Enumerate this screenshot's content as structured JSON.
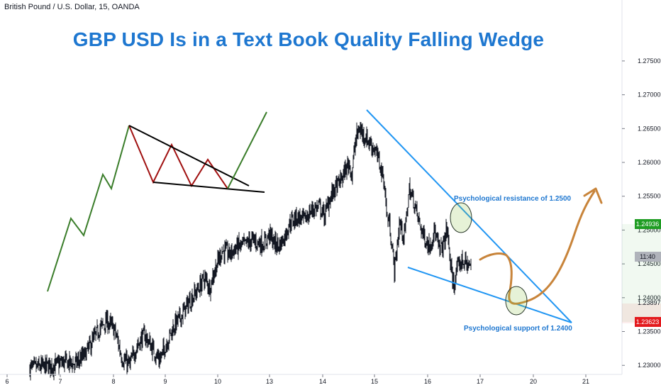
{
  "header": {
    "symbol_text": "British Pound / U.S. Dollar, 15, OANDA"
  },
  "title": "GBP USD Is in a Text Book Quality Falling Wedge",
  "colors": {
    "up_candle": "#131722",
    "wedge_line": "#2196f3",
    "annotation_text": "#1e77d0",
    "projection": "#c8843a",
    "illustration_impulse": "#3a7d2a",
    "illustration_zigzag": "#a01010",
    "illustration_wedge": "#000000",
    "price_green": "#1f9d23",
    "price_red": "#e3191d",
    "price_grey": "#b0b3bb"
  },
  "annotations": {
    "resistance": "Psychological resistance of 1.2500",
    "support": "Psychological support of 1.2400"
  },
  "price_labels": {
    "upper": "1.24936",
    "time": "11:40",
    "mid": "1.23897",
    "lower": "1.23623"
  },
  "chart_data": {
    "type": "line",
    "title": "GBP USD Is in a Text Book Quality Falling Wedge",
    "xlabel": "",
    "ylabel": "",
    "x_ticks": [
      "6",
      "7",
      "8",
      "9",
      "10",
      "13",
      "14",
      "15",
      "16",
      "17",
      "20",
      "21"
    ],
    "y_ticks": [
      "1.23000",
      "1.23500",
      "1.24000",
      "1.24500",
      "1.25000",
      "1.25500",
      "1.26000",
      "1.26500",
      "1.27000",
      "1.27500"
    ],
    "ylim": [
      1.2295,
      1.2795
    ],
    "grid": false,
    "series": [
      {
        "values": [
          [
            0.0,
            1.2296
          ],
          [
            0.5,
            1.23
          ],
          [
            0.7,
            1.2305
          ],
          [
            0.9,
            1.2302
          ],
          [
            1.1,
            1.2315
          ],
          [
            1.25,
            1.2335
          ],
          [
            1.4,
            1.2355
          ],
          [
            1.55,
            1.2365
          ],
          [
            1.7,
            1.2352
          ],
          [
            1.85,
            1.231
          ],
          [
            2.0,
            1.23
          ],
          [
            2.15,
            1.233
          ],
          [
            2.3,
            1.2345
          ],
          [
            2.45,
            1.2325
          ],
          [
            2.6,
            1.2308
          ],
          [
            2.75,
            1.2335
          ],
          [
            2.9,
            1.236
          ],
          [
            3.05,
            1.2375
          ],
          [
            3.2,
            1.2395
          ],
          [
            3.35,
            1.241
          ],
          [
            3.5,
            1.243
          ],
          [
            3.6,
            1.2415
          ],
          [
            3.7,
            1.244
          ],
          [
            3.85,
            1.247
          ],
          [
            4.0,
            1.2465
          ],
          [
            4.15,
            1.2475
          ],
          [
            4.3,
            1.2478
          ],
          [
            4.45,
            1.2485
          ],
          [
            4.55,
            1.2482
          ],
          [
            4.7,
            1.248
          ],
          [
            4.8,
            1.2495
          ],
          [
            4.9,
            1.248
          ],
          [
            5.0,
            1.2478
          ],
          [
            5.1,
            1.249
          ],
          [
            5.2,
            1.251
          ],
          [
            5.35,
            1.252
          ],
          [
            5.5,
            1.2515
          ],
          [
            5.65,
            1.253
          ],
          [
            5.8,
            1.2535
          ],
          [
            5.9,
            1.252
          ],
          [
            6.0,
            1.2545
          ],
          [
            6.1,
            1.256
          ],
          [
            6.2,
            1.257
          ],
          [
            6.3,
            1.2585
          ],
          [
            6.4,
            1.26
          ],
          [
            6.45,
            1.258
          ],
          [
            6.5,
            1.262
          ],
          [
            6.55,
            1.264
          ],
          [
            6.6,
            1.265
          ],
          [
            6.7,
            1.264
          ],
          [
            6.8,
            1.263
          ],
          [
            6.9,
            1.262
          ],
          [
            7.0,
            1.26
          ],
          [
            7.1,
            1.257
          ],
          [
            7.15,
            1.252
          ],
          [
            7.2,
            1.251
          ],
          [
            7.25,
            1.248
          ],
          [
            7.3,
            1.244
          ],
          [
            7.35,
            1.247
          ],
          [
            7.4,
            1.251
          ],
          [
            7.5,
            1.249
          ],
          [
            7.6,
            1.256
          ],
          [
            7.7,
            1.254
          ],
          [
            7.8,
            1.251
          ],
          [
            7.9,
            1.249
          ],
          [
            8.0,
            1.2475
          ],
          [
            8.1,
            1.25
          ],
          [
            8.2,
            1.247
          ],
          [
            8.3,
            1.248
          ],
          [
            8.35,
            1.2505
          ],
          [
            8.4,
            1.247
          ],
          [
            8.45,
            1.243
          ],
          [
            8.5,
            1.242
          ],
          [
            8.55,
            1.244
          ],
          [
            8.65,
            1.2455
          ],
          [
            8.75,
            1.245
          ],
          [
            8.85,
            1.2445
          ]
        ]
      }
    ],
    "trendlines": [
      {
        "name": "wedge upper",
        "from": [
          6.6,
          1.265
        ],
        "to": [
          10.55,
          1.2365
        ]
      },
      {
        "name": "wedge lower",
        "from": [
          7.25,
          1.2438
        ],
        "to": [
          10.55,
          1.2365
        ]
      }
    ],
    "projection": [
      [
        8.85,
        1.2445
      ],
      [
        9.15,
        1.2452
      ],
      [
        9.35,
        1.2448
      ],
      [
        9.45,
        1.242
      ],
      [
        9.5,
        1.2395
      ],
      [
        9.7,
        1.2397
      ],
      [
        9.9,
        1.2405
      ],
      [
        10.1,
        1.2425
      ],
      [
        10.3,
        1.247
      ],
      [
        10.5,
        1.251
      ],
      [
        10.7,
        1.2545
      ],
      [
        10.85,
        1.256
      ]
    ]
  }
}
